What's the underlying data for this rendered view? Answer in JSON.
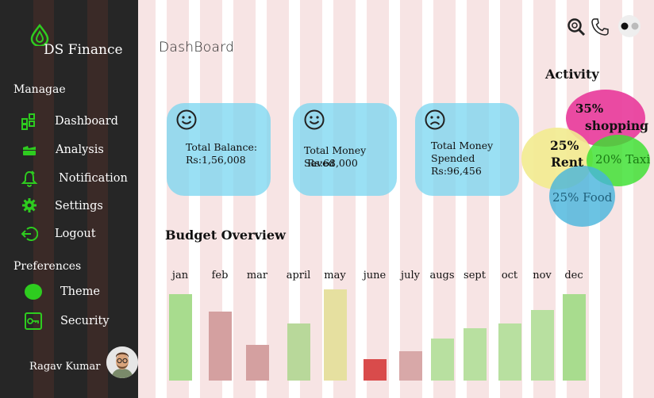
{
  "sidebar": {
    "app_title": "DS Finance",
    "manage_label": "Managae",
    "items": [
      {
        "label": "Dashboard",
        "icon": "dashboard-grid-icon"
      },
      {
        "label": "Analysis",
        "icon": "analysis-icon"
      },
      {
        "label": "Notification",
        "icon": "bell-icon"
      },
      {
        "label": "Settings",
        "icon": "gear-icon"
      },
      {
        "label": "Logout",
        "icon": "logout-icon"
      }
    ],
    "preferences_label": "Preferences",
    "preferences": [
      {
        "label": "Theme",
        "icon": "theme-toggle-icon"
      },
      {
        "label": "Security",
        "icon": "key-icon"
      }
    ],
    "user_name": "Ragav Kumar",
    "accent_color": "#2ecc1f"
  },
  "header": {
    "title": "DashBoard",
    "icons": [
      "search-icon",
      "phone-icon",
      "toggle-icon"
    ]
  },
  "cards": [
    {
      "title": "Total Balance:",
      "value": "Rs:1,56,008",
      "mood": "smile-face-icon"
    },
    {
      "title": "Total Money Saved",
      "value": "Rs:68,000",
      "mood": "smile-face-icon"
    },
    {
      "title_line1": "Total Money",
      "title_line2": "Spended",
      "value": "Rs:96,456",
      "mood": "sad-face-icon"
    }
  ],
  "activity": {
    "title": "Activity",
    "items": [
      {
        "percent": "35%",
        "label": "shopping",
        "color": "#e8389a"
      },
      {
        "percent": "25%",
        "label": "Rent",
        "color": "#f2eb8f"
      },
      {
        "text": "20% Taxi",
        "color": "#3be030"
      },
      {
        "text": "25% Food",
        "color": "#5bbfe0"
      }
    ]
  },
  "budget": {
    "title": "Budget Overview"
  },
  "chart_data": {
    "type": "bar",
    "categories": [
      "jan",
      "feb",
      "mar",
      "april",
      "may",
      "june",
      "july",
      "augs",
      "sept",
      "oct",
      "nov",
      "dec"
    ],
    "values": [
      105,
      84,
      43,
      69,
      110,
      26,
      36,
      51,
      63,
      69,
      85,
      105
    ],
    "colors": [
      "#a8dc8e",
      "#d4a0a0",
      "#d4a0a0",
      "#b8d89a",
      "#e6e0a0",
      "#d94b4b",
      "#d8a8a8",
      "#b8e0a0",
      "#b8e0a0",
      "#b8e0a0",
      "#b8e0a0",
      "#a8dc8e"
    ],
    "title": "Budget Overview",
    "ylim": [
      0,
      120
    ]
  }
}
